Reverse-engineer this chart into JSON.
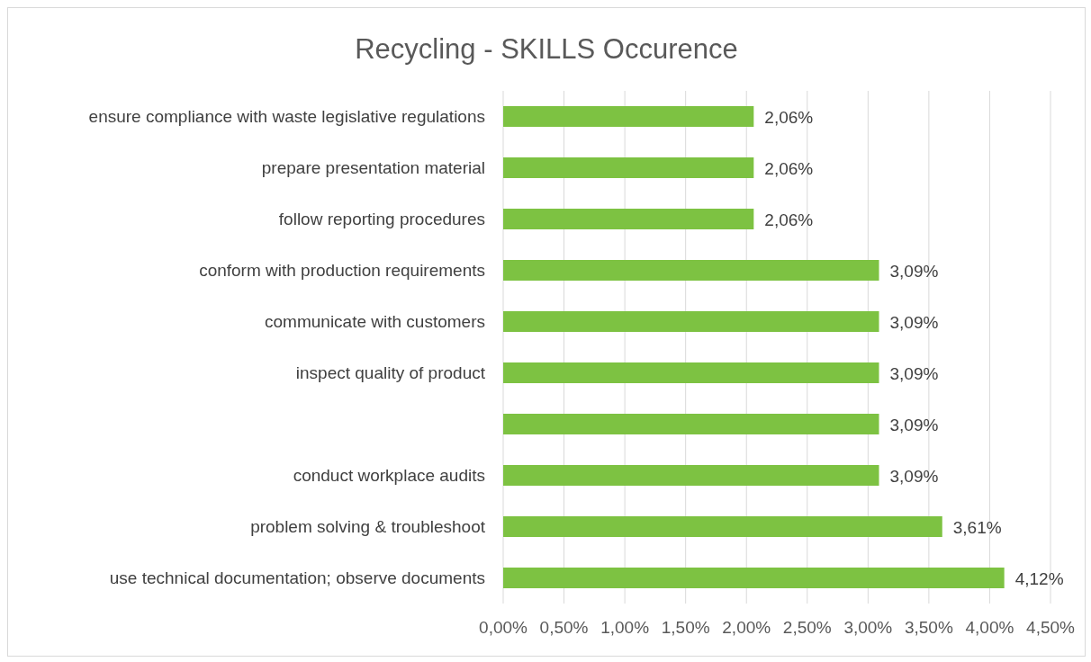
{
  "chart_data": {
    "type": "bar",
    "orientation": "horizontal",
    "title": "Recycling - SKILLS Occurence",
    "categories": [
      "ensure compliance with waste legislative regulations",
      "prepare presentation material",
      "follow reporting procedures",
      "conform with production requirements",
      "communicate with customers",
      "inspect quality of product",
      null,
      "conduct workplace audits",
      "problem solving & troubleshoot",
      "use technical documentation; observe documents"
    ],
    "values": [
      2.06,
      2.06,
      2.06,
      3.09,
      3.09,
      3.09,
      3.09,
      3.09,
      3.61,
      4.12
    ],
    "value_labels": [
      "2,06%",
      "2,06%",
      "2,06%",
      "3,09%",
      "3,09%",
      "3,09%",
      "3,09%",
      "3,09%",
      "3,61%",
      "4,12%"
    ],
    "color": "#7dc242",
    "xlim": [
      0,
      4.5
    ],
    "xticks": [
      {
        "value": 0,
        "label": "0,00%"
      },
      {
        "value": 0.5,
        "label": "0,50%"
      },
      {
        "value": 1,
        "label": "1,00%"
      },
      {
        "value": 1.5,
        "label": "1,50%"
      },
      {
        "value": 2,
        "label": "2,00%"
      },
      {
        "value": 2.5,
        "label": "2,50%"
      },
      {
        "value": 3,
        "label": "3,00%"
      },
      {
        "value": 3.5,
        "label": "3,50%"
      },
      {
        "value": 4,
        "label": "4,00%"
      },
      {
        "value": 4.5,
        "label": "4,50%"
      }
    ],
    "grid": "x"
  }
}
